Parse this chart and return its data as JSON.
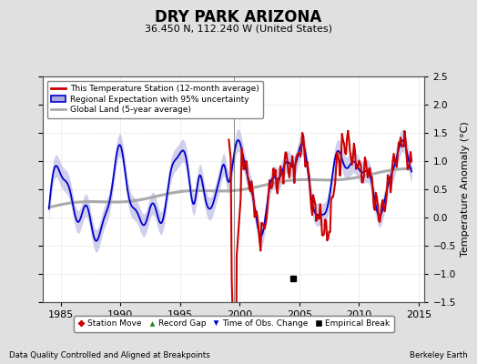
{
  "title": "DRY PARK ARIZONA",
  "subtitle": "36.450 N, 112.240 W (United States)",
  "ylabel": "Temperature Anomaly (°C)",
  "xlim": [
    1983.5,
    2015.5
  ],
  "ylim": [
    -1.5,
    2.5
  ],
  "yticks": [
    -1.5,
    -1.0,
    -0.5,
    0.0,
    0.5,
    1.0,
    1.5,
    2.0,
    2.5
  ],
  "xticks": [
    1985,
    1990,
    1995,
    2000,
    2005,
    2010,
    2015
  ],
  "bg_color": "#e0e0e0",
  "plot_bg_color": "#ffffff",
  "grid_color": "#cccccc",
  "station_line_color": "#cc0000",
  "regional_line_color": "#0000cc",
  "regional_fill_color": "#aaaadd",
  "global_line_color": "#aaaaaa",
  "footnote_left": "Data Quality Controlled and Aligned at Breakpoints",
  "footnote_right": "Berkeley Earth",
  "empirical_break_x": 2004.5,
  "empirical_break_y": -1.08,
  "obs_change_x": 1999.5,
  "obs_change_y": -1.42
}
